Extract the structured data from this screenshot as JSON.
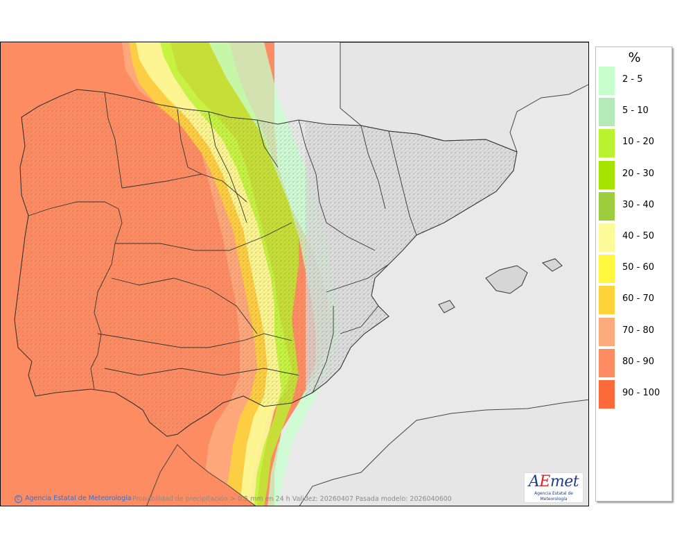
{
  "legend": {
    "title": "%",
    "items": [
      {
        "label": "2 - 5",
        "color": "#c6ffcc"
      },
      {
        "label": "5 - 10",
        "color": "#b4eab8"
      },
      {
        "label": "10 - 20",
        "color": "#b9f22e"
      },
      {
        "label": "20 - 30",
        "color": "#a5e300"
      },
      {
        "label": "30 - 40",
        "color": "#9ccd3d"
      },
      {
        "label": "40 - 50",
        "color": "#fdfa9a"
      },
      {
        "label": "50 - 60",
        "color": "#fdf83d"
      },
      {
        "label": "60 - 70",
        "color": "#fdd33a"
      },
      {
        "label": "70 - 80",
        "color": "#fdaa7c"
      },
      {
        "label": "80 - 90",
        "color": "#fd8c63"
      },
      {
        "label": "90 - 100",
        "color": "#fd6a3a"
      }
    ]
  },
  "footer": {
    "credit": "Agencia Estatal de Meteorología",
    "caption": "Probabilidad de precipitación > 0.5 mm en 24 h Validez: 20260407 Pasada modelo: 2026040600"
  },
  "logo": {
    "subtitle": "Agencia Estatal de Meteorología"
  },
  "colors": {
    "sea": "#fd8c63",
    "land_default": "#d6d6d6",
    "outside_land": "#e6e6e6"
  }
}
